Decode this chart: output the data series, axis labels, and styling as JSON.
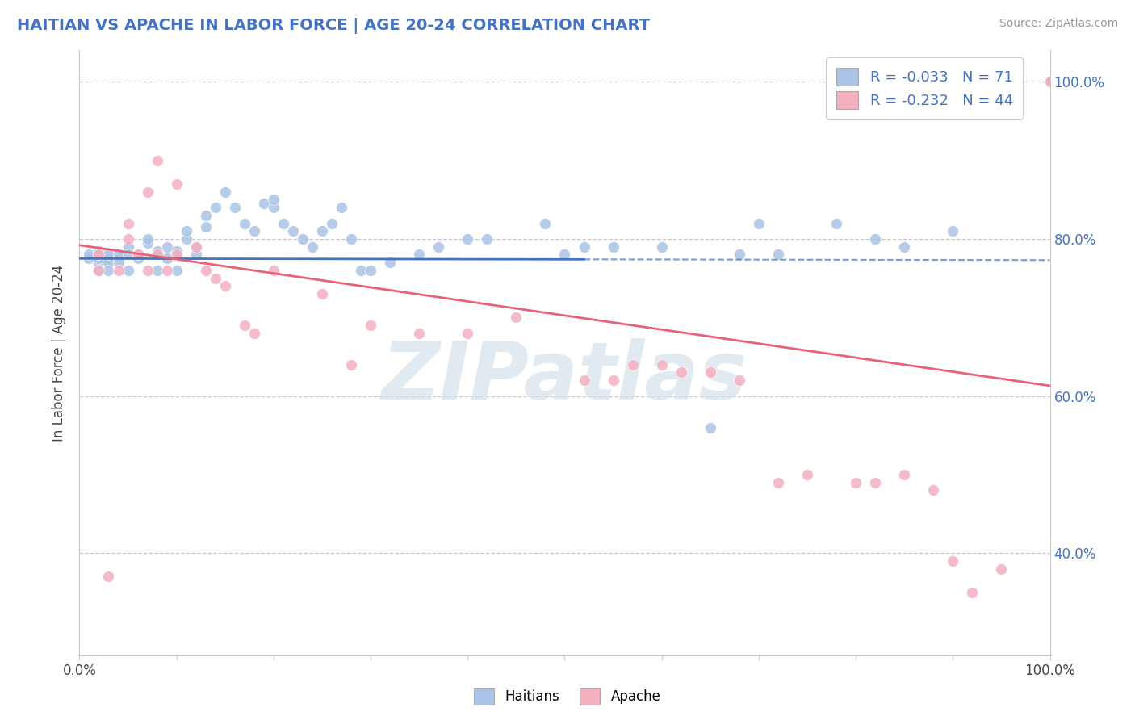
{
  "title": "HAITIAN VS APACHE IN LABOR FORCE | AGE 20-24 CORRELATION CHART",
  "source_text": "Source: ZipAtlas.com",
  "ylabel": "In Labor Force | Age 20-24",
  "xlim": [
    0.0,
    1.0
  ],
  "ylim": [
    0.27,
    1.04
  ],
  "haitian_color": "#aac4e4",
  "apache_color": "#f5b0c0",
  "haitian_line_color": "#4472c4",
  "apache_line_color": "#e8607a",
  "haitian_R": -0.033,
  "haitian_N": 71,
  "apache_R": -0.232,
  "apache_N": 44,
  "watermark": "ZIPatlas",
  "watermark_color": "#d0dce8",
  "background_color": "#ffffff",
  "grid_color": "#c8c8c8",
  "title_color": "#4472c4",
  "right_tick_color": "#4472c4",
  "haitian_line_y0": 0.775,
  "haitian_line_y1": 0.773,
  "haitian_line_solid_end": 0.52,
  "apache_line_y0": 0.792,
  "apache_line_y1": 0.613,
  "haitian_x": [
    0.01,
    0.01,
    0.02,
    0.02,
    0.02,
    0.02,
    0.02,
    0.03,
    0.03,
    0.03,
    0.03,
    0.04,
    0.04,
    0.04,
    0.05,
    0.05,
    0.05,
    0.06,
    0.06,
    0.07,
    0.07,
    0.08,
    0.08,
    0.08,
    0.09,
    0.09,
    0.1,
    0.1,
    0.11,
    0.11,
    0.12,
    0.12,
    0.13,
    0.13,
    0.14,
    0.15,
    0.16,
    0.17,
    0.18,
    0.19,
    0.2,
    0.2,
    0.21,
    0.22,
    0.23,
    0.24,
    0.25,
    0.26,
    0.27,
    0.28,
    0.29,
    0.3,
    0.32,
    0.35,
    0.37,
    0.4,
    0.42,
    0.48,
    0.5,
    0.52,
    0.55,
    0.6,
    0.65,
    0.68,
    0.7,
    0.72,
    0.78,
    0.82,
    0.85,
    0.9,
    1.0
  ],
  "haitian_y": [
    0.775,
    0.78,
    0.76,
    0.77,
    0.775,
    0.785,
    0.78,
    0.775,
    0.77,
    0.78,
    0.76,
    0.775,
    0.78,
    0.77,
    0.79,
    0.78,
    0.76,
    0.775,
    0.78,
    0.795,
    0.8,
    0.785,
    0.78,
    0.76,
    0.79,
    0.775,
    0.785,
    0.76,
    0.8,
    0.81,
    0.78,
    0.79,
    0.815,
    0.83,
    0.84,
    0.86,
    0.84,
    0.82,
    0.81,
    0.845,
    0.84,
    0.85,
    0.82,
    0.81,
    0.8,
    0.79,
    0.81,
    0.82,
    0.84,
    0.8,
    0.76,
    0.76,
    0.77,
    0.78,
    0.79,
    0.8,
    0.8,
    0.82,
    0.78,
    0.79,
    0.79,
    0.79,
    0.56,
    0.78,
    0.82,
    0.78,
    0.82,
    0.8,
    0.79,
    0.81,
    1.0
  ],
  "apache_x": [
    0.02,
    0.02,
    0.03,
    0.04,
    0.05,
    0.05,
    0.06,
    0.07,
    0.07,
    0.08,
    0.08,
    0.09,
    0.1,
    0.1,
    0.12,
    0.13,
    0.14,
    0.15,
    0.17,
    0.18,
    0.2,
    0.25,
    0.28,
    0.3,
    0.35,
    0.4,
    0.45,
    0.52,
    0.55,
    0.57,
    0.6,
    0.62,
    0.65,
    0.68,
    0.72,
    0.75,
    0.8,
    0.82,
    0.85,
    0.88,
    0.9,
    0.92,
    0.95,
    1.0
  ],
  "apache_y": [
    0.78,
    0.76,
    0.37,
    0.76,
    0.8,
    0.82,
    0.78,
    0.76,
    0.86,
    0.9,
    0.78,
    0.76,
    0.78,
    0.87,
    0.79,
    0.76,
    0.75,
    0.74,
    0.69,
    0.68,
    0.76,
    0.73,
    0.64,
    0.69,
    0.68,
    0.68,
    0.7,
    0.62,
    0.62,
    0.64,
    0.64,
    0.63,
    0.63,
    0.62,
    0.49,
    0.5,
    0.49,
    0.49,
    0.5,
    0.48,
    0.39,
    0.35,
    0.38,
    1.0
  ]
}
